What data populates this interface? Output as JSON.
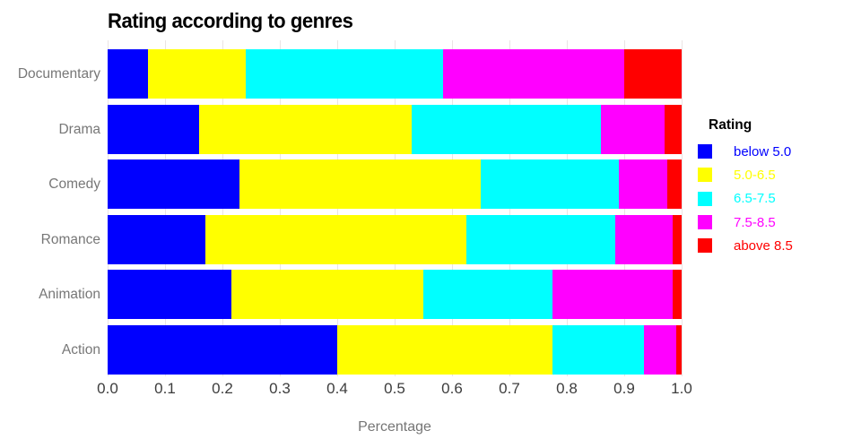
{
  "title": "Rating according to genres",
  "xlabel": "Percentage",
  "legend": {
    "title": "Rating"
  },
  "chart_data": {
    "type": "bar",
    "orientation": "horizontal",
    "stacked": true,
    "title": "Rating according to genres",
    "xlabel": "Percentage",
    "ylabel": "",
    "categories_top_to_bottom": [
      "Documentary",
      "Drama",
      "Comedy",
      "Romance",
      "Animation",
      "Action"
    ],
    "series": [
      {
        "name": "below 5.0",
        "color": "#0000ff",
        "values": [
          0.07,
          0.16,
          0.23,
          0.17,
          0.215,
          0.4
        ]
      },
      {
        "name": "5.0-6.5",
        "color": "#ffff00",
        "values": [
          0.17,
          0.37,
          0.42,
          0.455,
          0.335,
          0.375
        ]
      },
      {
        "name": "6.5-7.5",
        "color": "#00ffff",
        "values": [
          0.345,
          0.33,
          0.24,
          0.26,
          0.225,
          0.16
        ]
      },
      {
        "name": "7.5-8.5",
        "color": "#ff00ff",
        "values": [
          0.315,
          0.11,
          0.085,
          0.1,
          0.21,
          0.055
        ]
      },
      {
        "name": "above 8.5",
        "color": "#ff0000",
        "values": [
          0.1,
          0.03,
          0.025,
          0.015,
          0.015,
          0.01
        ]
      }
    ],
    "x_ticks": [
      "0.0",
      "0.1",
      "0.2",
      "0.3",
      "0.4",
      "0.5",
      "0.6",
      "0.7",
      "0.8",
      "0.9",
      "1.0"
    ],
    "xlim": [
      0,
      1
    ],
    "grid": "vertical-light",
    "legend_position": "right",
    "legend_title": "Rating",
    "background_color": "#ffffff",
    "gridline_color": "#eae4e4"
  }
}
